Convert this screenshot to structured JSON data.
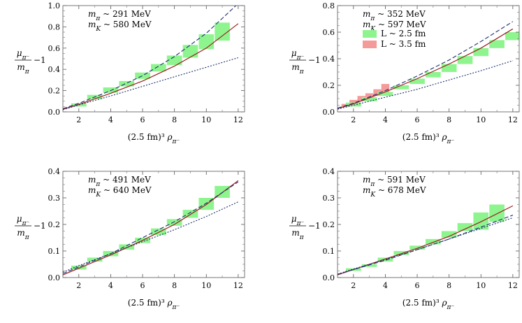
{
  "chart_data": [
    {
      "type": "line",
      "panel": "top-left",
      "annotations": [
        "m_π ~ 291 MeV",
        "m_K ~ 580 MeV"
      ],
      "xlabel": "(2.5 fm)³ ρ_π⁻",
      "ylabel": "μ_π⁻/m_π − 1",
      "xlim": [
        1,
        12.4
      ],
      "ylim": [
        0,
        1.0
      ],
      "xticks": [
        2,
        4,
        6,
        8,
        10,
        12
      ],
      "yticks": [
        0.0,
        0.2,
        0.4,
        0.6,
        0.8,
        1.0
      ],
      "grid": false,
      "boxes": [
        {
          "x": 2,
          "ylo": 0.05,
          "yhi": 0.08
        },
        {
          "x": 3,
          "ylo": 0.12,
          "yhi": 0.16
        },
        {
          "x": 4,
          "ylo": 0.18,
          "yhi": 0.23
        },
        {
          "x": 5,
          "ylo": 0.24,
          "yhi": 0.29
        },
        {
          "x": 6,
          "ylo": 0.31,
          "yhi": 0.37
        },
        {
          "x": 7,
          "ylo": 0.38,
          "yhi": 0.45
        },
        {
          "x": 8,
          "ylo": 0.44,
          "yhi": 0.53
        },
        {
          "x": 9,
          "ylo": 0.51,
          "yhi": 0.63
        },
        {
          "x": 10,
          "ylo": 0.59,
          "yhi": 0.73
        },
        {
          "x": 11,
          "ylo": 0.67,
          "yhi": 0.84
        }
      ],
      "series": [
        {
          "style": "solid",
          "color": "#9a1e1e",
          "x": [
            1,
            2,
            4,
            6,
            8,
            10,
            12
          ],
          "y": [
            0.025,
            0.07,
            0.175,
            0.29,
            0.43,
            0.6,
            0.83
          ]
        },
        {
          "style": "dashed",
          "color": "#1c2f6e",
          "x": [
            1,
            2,
            4,
            6,
            8,
            10,
            12
          ],
          "y": [
            0.03,
            0.08,
            0.2,
            0.34,
            0.52,
            0.74,
            1.02
          ]
        },
        {
          "style": "dotted",
          "color": "#1c2f6e",
          "x": [
            1,
            2,
            4,
            6,
            8,
            10,
            12
          ],
          "y": [
            0.02,
            0.065,
            0.15,
            0.24,
            0.33,
            0.42,
            0.51
          ]
        }
      ]
    },
    {
      "type": "line",
      "panel": "top-right",
      "annotations": [
        "m_π ~ 352 MeV",
        "m_K ~ 597 MeV"
      ],
      "legend": [
        "L ~ 2.5 fm",
        "L ~ 3.5 fm"
      ],
      "legend_colors": [
        "#8ef58e",
        "#f59a9a"
      ],
      "xlabel": "(2.5 fm)³ ρ_π⁻",
      "ylabel": "μ_π⁻/m_π − 1",
      "xlim": [
        1,
        12.4
      ],
      "ylim": [
        0,
        0.8
      ],
      "xticks": [
        2,
        4,
        6,
        8,
        10,
        12
      ],
      "yticks": [
        0.0,
        0.2,
        0.4,
        0.6,
        0.8
      ],
      "grid": false,
      "boxes": [
        {
          "x": 2,
          "ylo": 0.04,
          "yhi": 0.07
        },
        {
          "x": 3,
          "ylo": 0.08,
          "yhi": 0.11
        },
        {
          "x": 4,
          "ylo": 0.12,
          "yhi": 0.15
        },
        {
          "x": 5,
          "ylo": 0.17,
          "yhi": 0.2
        },
        {
          "x": 6,
          "ylo": 0.21,
          "yhi": 0.25
        },
        {
          "x": 7,
          "ylo": 0.26,
          "yhi": 0.3
        },
        {
          "x": 8,
          "ylo": 0.3,
          "yhi": 0.36
        },
        {
          "x": 9,
          "ylo": 0.36,
          "yhi": 0.42
        },
        {
          "x": 10,
          "ylo": 0.42,
          "yhi": 0.48
        },
        {
          "x": 11,
          "ylo": 0.48,
          "yhi": 0.54
        },
        {
          "x": 12,
          "ylo": 0.54,
          "yhi": 0.6
        }
      ],
      "boxes_secondary": [
        {
          "x": 1.5,
          "ylo": 0.04,
          "yhi": 0.06
        },
        {
          "x": 2.0,
          "ylo": 0.06,
          "yhi": 0.09
        },
        {
          "x": 2.5,
          "ylo": 0.08,
          "yhi": 0.12
        },
        {
          "x": 3.0,
          "ylo": 0.1,
          "yhi": 0.14
        },
        {
          "x": 3.5,
          "ylo": 0.12,
          "yhi": 0.17
        },
        {
          "x": 4.0,
          "ylo": 0.15,
          "yhi": 0.21
        }
      ],
      "series": [
        {
          "style": "solid",
          "color": "#9a1e1e",
          "x": [
            1,
            2,
            4,
            6,
            8,
            10,
            12
          ],
          "y": [
            0.025,
            0.06,
            0.15,
            0.25,
            0.36,
            0.48,
            0.625
          ]
        },
        {
          "style": "dashed",
          "color": "#1c2f6e",
          "x": [
            1,
            2,
            4,
            6,
            8,
            10,
            12
          ],
          "y": [
            0.028,
            0.065,
            0.16,
            0.27,
            0.39,
            0.53,
            0.68
          ]
        },
        {
          "style": "dotted",
          "color": "#1c2f6e",
          "x": [
            1,
            2,
            4,
            6,
            8,
            10,
            12
          ],
          "y": [
            0.02,
            0.05,
            0.11,
            0.17,
            0.24,
            0.31,
            0.385
          ]
        }
      ]
    },
    {
      "type": "line",
      "panel": "bottom-left",
      "annotations": [
        "m_π ~ 491 MeV",
        "m_K ~ 640 MeV"
      ],
      "xlabel": "(2.5 fm)³ ρ_π⁻",
      "ylabel": "μ_π⁻/m_π − 1",
      "xlim": [
        1,
        12.4
      ],
      "ylim": [
        0,
        0.4
      ],
      "xticks": [
        2,
        4,
        6,
        8,
        10,
        12
      ],
      "yticks": [
        0.0,
        0.1,
        0.2,
        0.3,
        0.4
      ],
      "grid": false,
      "boxes": [
        {
          "x": 2,
          "ylo": 0.03,
          "yhi": 0.045
        },
        {
          "x": 3,
          "ylo": 0.06,
          "yhi": 0.075
        },
        {
          "x": 4,
          "ylo": 0.08,
          "yhi": 0.1
        },
        {
          "x": 5,
          "ylo": 0.105,
          "yhi": 0.125
        },
        {
          "x": 6,
          "ylo": 0.13,
          "yhi": 0.15
        },
        {
          "x": 7,
          "ylo": 0.16,
          "yhi": 0.185
        },
        {
          "x": 8,
          "ylo": 0.195,
          "yhi": 0.22
        },
        {
          "x": 9,
          "ylo": 0.225,
          "yhi": 0.255
        },
        {
          "x": 10,
          "ylo": 0.255,
          "yhi": 0.3
        },
        {
          "x": 11,
          "ylo": 0.3,
          "yhi": 0.345
        }
      ],
      "series": [
        {
          "style": "solid",
          "color": "#9a1e1e",
          "x": [
            1,
            2,
            4,
            6,
            8,
            10,
            12
          ],
          "y": [
            0.01,
            0.035,
            0.085,
            0.14,
            0.2,
            0.275,
            0.365
          ]
        },
        {
          "style": "dashed",
          "color": "#1c2f6e",
          "x": [
            1,
            2,
            4,
            6,
            8,
            10,
            12
          ],
          "y": [
            0.015,
            0.04,
            0.09,
            0.15,
            0.21,
            0.28,
            0.36
          ]
        },
        {
          "style": "dotted",
          "color": "#1c2f6e",
          "x": [
            1,
            2,
            4,
            6,
            8,
            10,
            12
          ],
          "y": [
            0.02,
            0.045,
            0.09,
            0.135,
            0.18,
            0.23,
            0.285
          ]
        }
      ]
    },
    {
      "type": "line",
      "panel": "bottom-right",
      "annotations": [
        "m_π ~ 591 MeV",
        "m_K ~ 678 MeV"
      ],
      "xlabel": "(2.5 fm)³ ρ_π⁻",
      "ylabel": "μ_π⁻/m_π − 1",
      "xlim": [
        1,
        12.4
      ],
      "ylim": [
        0,
        0.4
      ],
      "xticks": [
        2,
        4,
        6,
        8,
        10,
        12
      ],
      "yticks": [
        0.0,
        0.1,
        0.2,
        0.3,
        0.4
      ],
      "grid": false,
      "boxes": [
        {
          "x": 2,
          "ylo": 0.025,
          "yhi": 0.035
        },
        {
          "x": 3,
          "ylo": 0.04,
          "yhi": 0.05
        },
        {
          "x": 4,
          "ylo": 0.06,
          "yhi": 0.075
        },
        {
          "x": 5,
          "ylo": 0.085,
          "yhi": 0.1
        },
        {
          "x": 6,
          "ylo": 0.105,
          "yhi": 0.12
        },
        {
          "x": 7,
          "ylo": 0.125,
          "yhi": 0.145
        },
        {
          "x": 8,
          "ylo": 0.15,
          "yhi": 0.175
        },
        {
          "x": 9,
          "ylo": 0.175,
          "yhi": 0.205
        },
        {
          "x": 10,
          "ylo": 0.18,
          "yhi": 0.245
        },
        {
          "x": 11,
          "ylo": 0.21,
          "yhi": 0.275
        }
      ],
      "series": [
        {
          "style": "solid",
          "color": "#9a1e1e",
          "x": [
            1,
            2,
            4,
            6,
            8,
            10,
            12
          ],
          "y": [
            0.01,
            0.03,
            0.07,
            0.11,
            0.155,
            0.21,
            0.27
          ]
        },
        {
          "style": "dashed",
          "color": "#1c2f6e",
          "x": [
            1,
            2,
            4,
            6,
            8,
            10,
            12
          ],
          "y": [
            0.012,
            0.03,
            0.065,
            0.105,
            0.145,
            0.19,
            0.235
          ]
        },
        {
          "style": "dotted",
          "color": "#1c2f6e",
          "x": [
            1,
            2,
            4,
            6,
            8,
            10,
            12
          ],
          "y": [
            0.013,
            0.032,
            0.068,
            0.105,
            0.145,
            0.185,
            0.225
          ]
        }
      ]
    }
  ]
}
